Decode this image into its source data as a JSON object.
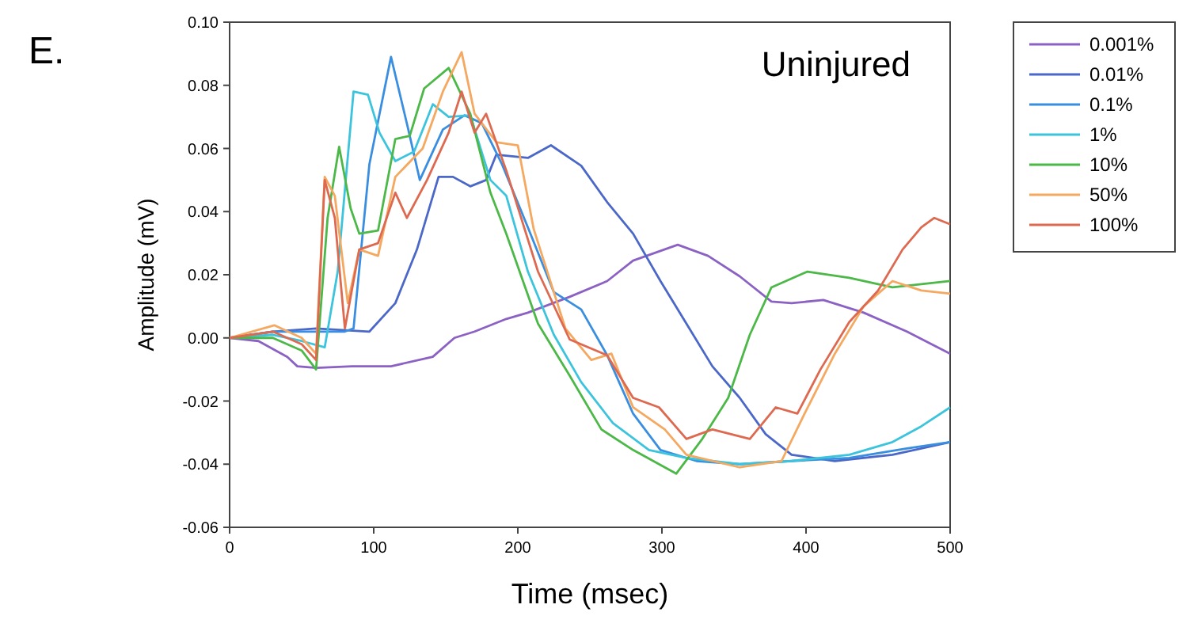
{
  "chart_data": {
    "type": "line",
    "title": "Uninjured",
    "annotations": [
      "E."
    ],
    "xlabel": "Time (msec)",
    "ylabel": "Amplitude (mV)",
    "xlim": [
      0,
      500
    ],
    "xticks": [
      0,
      100,
      200,
      300,
      400,
      500
    ],
    "ylim": [
      -0.06,
      0.1
    ],
    "yticks": [
      {
        "value": -0.06,
        "label": "-0.06"
      },
      {
        "value": -0.04,
        "label": "-0.04"
      },
      {
        "value": -0.02,
        "label": "-0.02"
      },
      {
        "value": 0,
        "label": "0.00"
      },
      {
        "value": 0.02,
        "label": "0.02"
      },
      {
        "value": 0.04,
        "label": "0.04"
      },
      {
        "value": 0.06,
        "label": "0.06"
      },
      {
        "value": 0.08,
        "label": "0.08"
      },
      {
        "value": 0.1,
        "label": "0.10"
      }
    ],
    "grid": false,
    "legend": "right",
    "marker": "none",
    "line_style": "solid",
    "series": [
      {
        "name": "0.001%",
        "color": "#8b62c4",
        "x": [
          0,
          20,
          40,
          47,
          60,
          85,
          112,
          141,
          156,
          170,
          192,
          207,
          236,
          262,
          280,
          311,
          332,
          354,
          376,
          390,
          412,
          440,
          470,
          500
        ],
        "values": [
          0,
          -0.001,
          -0.006,
          -0.009,
          -0.0095,
          -0.009,
          -0.009,
          -0.006,
          0,
          0.002,
          0.006,
          0.008,
          0.013,
          0.018,
          0.0245,
          0.0295,
          0.026,
          0.0195,
          0.0115,
          0.011,
          0.012,
          0.008,
          0.002,
          -0.005
        ]
      },
      {
        "name": "0.01%",
        "color": "#4b68c8",
        "x": [
          0,
          30,
          60,
          97,
          115,
          130,
          145,
          155,
          167,
          178,
          185,
          207,
          223,
          244,
          262,
          280,
          299,
          317,
          335,
          354,
          372,
          390,
          420,
          460,
          500
        ],
        "values": [
          0,
          0.002,
          0.003,
          0.002,
          0.011,
          0.028,
          0.051,
          0.051,
          0.048,
          0.05,
          0.058,
          0.057,
          0.061,
          0.0545,
          0.043,
          0.033,
          0.018,
          0.0045,
          -0.009,
          -0.019,
          -0.0305,
          -0.037,
          -0.039,
          -0.037,
          -0.033
        ]
      },
      {
        "name": "0.1%",
        "color": "#3a8ee0",
        "x": [
          0,
          30,
          60,
          80,
          86,
          97,
          112,
          124,
          132,
          148,
          163,
          175,
          189,
          207,
          225,
          244,
          262,
          280,
          299,
          324,
          354,
          390,
          430,
          470,
          500
        ],
        "values": [
          0,
          0.002,
          0.002,
          0.002,
          0.003,
          0.055,
          0.089,
          0.066,
          0.05,
          0.066,
          0.0705,
          0.068,
          0.055,
          0.035,
          0.0145,
          0.009,
          -0.0055,
          -0.024,
          -0.0355,
          -0.039,
          -0.04,
          -0.039,
          -0.038,
          -0.035,
          -0.033
        ]
      },
      {
        "name": "1%",
        "color": "#3cc4dc",
        "x": [
          0,
          30,
          50,
          66,
          75,
          86,
          96,
          104,
          115,
          128,
          141,
          152,
          167,
          181,
          192,
          207,
          225,
          244,
          266,
          291,
          317,
          354,
          390,
          430,
          460,
          480,
          500
        ],
        "values": [
          0,
          0.001,
          -0.001,
          -0.003,
          0.021,
          0.078,
          0.077,
          0.065,
          0.056,
          0.059,
          0.074,
          0.07,
          0.0705,
          0.05,
          0.045,
          0.021,
          0.001,
          -0.014,
          -0.027,
          -0.0355,
          -0.038,
          -0.04,
          -0.039,
          -0.037,
          -0.033,
          -0.028,
          -0.022
        ]
      },
      {
        "name": "10%",
        "color": "#4cb848",
        "x": [
          0,
          30,
          50,
          60,
          68,
          76,
          84,
          90,
          103,
          115,
          125,
          135,
          152,
          167,
          181,
          192,
          214,
          236,
          258,
          280,
          310,
          328,
          346,
          361,
          376,
          401,
          430,
          460,
          500
        ],
        "values": [
          0,
          0,
          -0.004,
          -0.01,
          0.038,
          0.0605,
          0.041,
          0.033,
          0.034,
          0.063,
          0.064,
          0.079,
          0.0855,
          0.071,
          0.046,
          0.033,
          0.0045,
          -0.012,
          -0.029,
          -0.0355,
          -0.043,
          -0.032,
          -0.019,
          0.001,
          0.016,
          0.021,
          0.019,
          0.016,
          0.018
        ]
      },
      {
        "name": "50%",
        "color": "#f5a860",
        "x": [
          0,
          31,
          50,
          60,
          66,
          73,
          82,
          90,
          103,
          115,
          134,
          148,
          161,
          170,
          185,
          200,
          211,
          233,
          251,
          265,
          280,
          302,
          317,
          354,
          383,
          399,
          420,
          440,
          460,
          480,
          500
        ],
        "values": [
          0,
          0.004,
          0,
          -0.005,
          0.051,
          0.045,
          0.011,
          0.028,
          0.026,
          0.051,
          0.06,
          0.078,
          0.0905,
          0.071,
          0.062,
          0.061,
          0.0345,
          0.003,
          -0.007,
          -0.005,
          -0.022,
          -0.029,
          -0.037,
          -0.041,
          -0.039,
          -0.024,
          -0.005,
          0.01,
          0.018,
          0.015,
          0.014
        ]
      },
      {
        "name": "100%",
        "color": "#dd6a50",
        "x": [
          0,
          30,
          50,
          60,
          66,
          73,
          80,
          90,
          103,
          115,
          123,
          137,
          152,
          161,
          170,
          178,
          192,
          214,
          236,
          262,
          280,
          298,
          317,
          335,
          361,
          379,
          394,
          410,
          430,
          450,
          467,
          480,
          489,
          500
        ],
        "values": [
          0,
          0.002,
          -0.002,
          -0.007,
          0.05,
          0.038,
          0.003,
          0.028,
          0.03,
          0.046,
          0.038,
          0.05,
          0.065,
          0.078,
          0.065,
          0.071,
          0.053,
          0.021,
          -0.0005,
          -0.0055,
          -0.019,
          -0.022,
          -0.032,
          -0.029,
          -0.032,
          -0.022,
          -0.024,
          -0.01,
          0.005,
          0.015,
          0.028,
          0.035,
          0.038,
          0.036
        ]
      }
    ]
  }
}
